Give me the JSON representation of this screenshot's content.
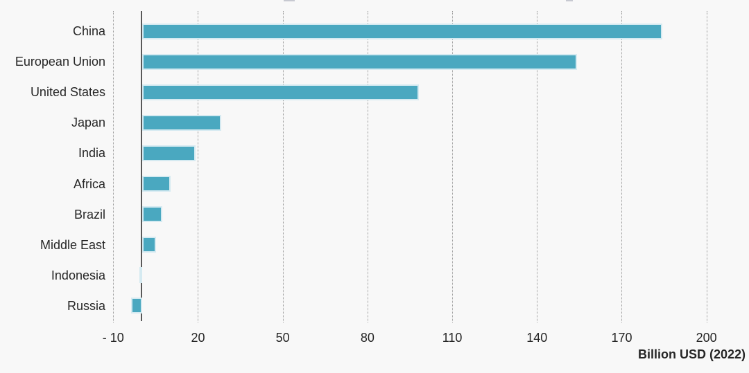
{
  "chart_data": {
    "type": "bar",
    "orientation": "horizontal",
    "title": "",
    "categories": [
      "China",
      "European Union",
      "United States",
      "Japan",
      "India",
      "Africa",
      "Brazil",
      "Middle East",
      "Indonesia",
      "Russia"
    ],
    "values": [
      184,
      154,
      98,
      28,
      19,
      10,
      7,
      5,
      -1,
      -4
    ],
    "xlabel": "Billion USD (2022)",
    "ylabel": "",
    "x_ticks": [
      -10,
      20,
      50,
      80,
      110,
      140,
      170,
      200
    ],
    "x_tick_labels": [
      "- 10",
      "20",
      "50",
      "80",
      "110",
      "140",
      "170",
      "200"
    ],
    "xlim": [
      -20,
      215
    ],
    "grid": "vertical-dotted",
    "legend": "none",
    "colors": {
      "bar": "#4AA8C0",
      "bar_border": "#D5EAF1",
      "axis_line": "#595959",
      "gridline": "#9B9B9B",
      "text": "#262626",
      "background": "#F8F8F8"
    }
  }
}
